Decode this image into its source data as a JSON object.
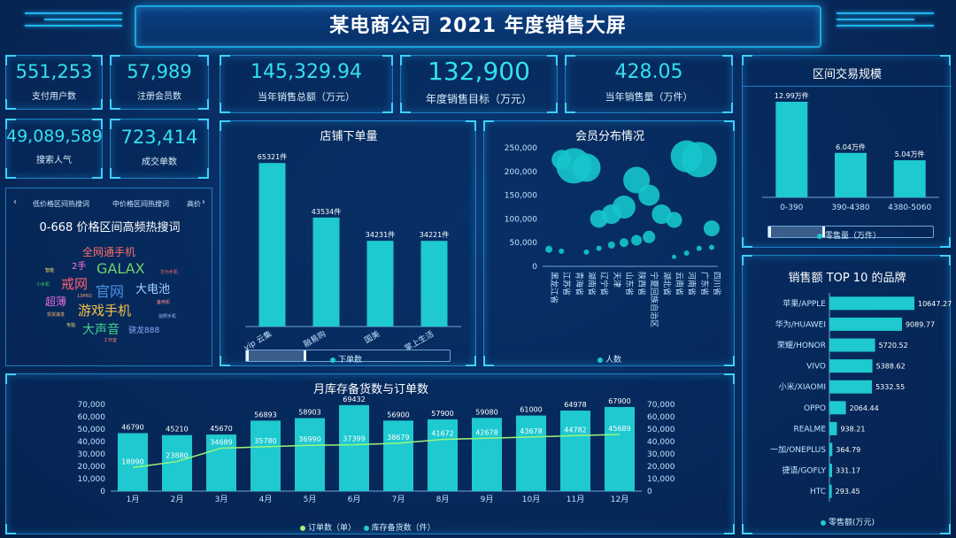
{
  "header": {
    "title": "某电商公司 2021 年度销售大屏"
  },
  "kpis": [
    {
      "value": "551,253",
      "label": "支付用户数"
    },
    {
      "value": "57,989",
      "label": "注册会员数"
    },
    {
      "value": "49,089,589",
      "label": "搜索人气"
    },
    {
      "value": "723,414",
      "label": "成交单数"
    }
  ],
  "top_kpis": [
    {
      "value": "145,329.94",
      "label": "当年销售总额（万元）"
    },
    {
      "value": "132,900",
      "label": "年度销售目标（万元）"
    },
    {
      "value": "428.05",
      "label": "当年销售量（万件）"
    }
  ],
  "keywords_panel": {
    "tabs": [
      "低价格区间热搜词",
      "中价格区间热搜词",
      "高价"
    ],
    "arrow_left": "‹",
    "arrow_right": "›",
    "heading": "0-668 价格区间高频热搜词",
    "words": [
      {
        "text": "全网通手机",
        "color": "#ff6a6a"
      },
      {
        "text": "2手",
        "color": "#ff7ad9"
      },
      {
        "text": "GALAX",
        "color": "#6fd16f"
      },
      {
        "text": "戒网",
        "color": "#ff5f6e"
      },
      {
        "text": "官网",
        "color": "#4a8fe8"
      },
      {
        "text": "大电池",
        "color": "#9fd6ff"
      },
      {
        "text": "超薄",
        "color": "#e36dd8"
      },
      {
        "text": "游戏手机",
        "color": "#f6c14a"
      },
      {
        "text": "大声音",
        "color": "#45d08c"
      },
      {
        "text": "骁龙888",
        "color": "#8fa8ff"
      },
      {
        "text": "华为手机",
        "color": "#ff6a6a"
      },
      {
        "text": "备用机",
        "color": "#ff8a8a"
      },
      {
        "text": "拍照手机",
        "color": "#9fb8ff"
      },
      {
        "text": "现货速发",
        "color": "#ffb56a"
      },
      {
        "text": "小手机",
        "color": "#4ecf6a"
      },
      {
        "text": "13PRO",
        "color": "#ff9a6a"
      },
      {
        "text": "工作室",
        "color": "#ff7a7a"
      },
      {
        "text": "智能",
        "color": "#ffe86a"
      },
      {
        "text": "专拍",
        "color": "#ffe86a"
      }
    ]
  },
  "store_orders": {
    "title": "店铺下单量",
    "legend": "下单数",
    "chart_data": {
      "type": "bar",
      "categories": [
        "vip 云集",
        "融易购",
        "国美",
        "掌上生活"
      ],
      "values": [
        65321,
        43534,
        34231,
        34221
      ],
      "value_labels": [
        "65321件",
        "43534件",
        "34231件",
        "34221件"
      ],
      "color": "#1ec9cf"
    }
  },
  "members": {
    "title": "会员分布情况",
    "legend": "人数",
    "chart_data": {
      "type": "scatter",
      "categories": [
        "黑龙江省",
        "江苏省",
        "青海省",
        "湖南省",
        "辽宁省",
        "天津",
        "山东省",
        "陕西省",
        "宁夏回族自治区",
        "湖北省",
        "云南省",
        "河南省",
        "广东省",
        "四川省"
      ],
      "y_ticks": [
        "250,000",
        "200,000",
        "150,000",
        "100,000",
        "50,000",
        "0"
      ],
      "ylim": [
        0,
        250000
      ],
      "points": [
        {
          "x": "黑龙江省",
          "y": 36000,
          "size": 8
        },
        {
          "x": "江苏省",
          "y": 225000,
          "size": 22
        },
        {
          "x": "青海省",
          "y": 212000,
          "size": 40
        },
        {
          "x": "湖南省",
          "y": 208000,
          "size": 32
        },
        {
          "x": "辽宁省",
          "y": 100000,
          "size": 20
        },
        {
          "x": "天津",
          "y": 110000,
          "size": 22
        },
        {
          "x": "山东省",
          "y": 125000,
          "size": 26
        },
        {
          "x": "陕西省",
          "y": 182000,
          "size": 30
        },
        {
          "x": "宁夏回族自治区",
          "y": 150000,
          "size": 24
        },
        {
          "x": "湖北省",
          "y": 110000,
          "size": 22
        },
        {
          "x": "云南省",
          "y": 98000,
          "size": 18
        },
        {
          "x": "河南省",
          "y": 232000,
          "size": 36
        },
        {
          "x": "广东省",
          "y": 225000,
          "size": 40
        },
        {
          "x": "四川省",
          "y": 80000,
          "size": 18
        },
        {
          "x": "江苏省",
          "y": 32000,
          "size": 6
        },
        {
          "x": "湖南省",
          "y": 30000,
          "size": 6
        },
        {
          "x": "辽宁省",
          "y": 38000,
          "size": 6
        },
        {
          "x": "天津",
          "y": 45000,
          "size": 8
        },
        {
          "x": "山东省",
          "y": 50000,
          "size": 10
        },
        {
          "x": "陕西省",
          "y": 55000,
          "size": 12
        },
        {
          "x": "宁夏回族自治区",
          "y": 62000,
          "size": 14
        },
        {
          "x": "云南省",
          "y": 20000,
          "size": 5
        },
        {
          "x": "河南省",
          "y": 28000,
          "size": 6
        },
        {
          "x": "广东省",
          "y": 38000,
          "size": 6
        },
        {
          "x": "四川省",
          "y": 40000,
          "size": 6
        }
      ]
    }
  },
  "trade_scale": {
    "title": "区间交易规模",
    "legend": "零售量（万件）",
    "chart_data": {
      "type": "bar",
      "categories": [
        "0-390",
        "390-4380",
        "4380-5060"
      ],
      "values": [
        12.99,
        6.04,
        5.04
      ],
      "value_labels": [
        "12.99万件",
        "6.04万件",
        "5.04万件"
      ]
    }
  },
  "monthly": {
    "title": "月库存备货数与订单数",
    "legend_line": "订单数（单）",
    "legend_bar": "库存备货数（件）",
    "chart_data": {
      "type": "bar",
      "categories": [
        "1月",
        "2月",
        "3月",
        "4月",
        "5月",
        "6月",
        "7月",
        "8月",
        "9月",
        "10月",
        "11月",
        "12月"
      ],
      "y_ticks_left": [
        "70,000",
        "60,000",
        "50,000",
        "40,000",
        "30,000",
        "20,000",
        "10,000",
        "0"
      ],
      "y_ticks_right": [
        "70,000",
        "60,000",
        "50,000",
        "40,000",
        "30,000",
        "20,000",
        "10,000",
        "0"
      ],
      "ylim": [
        0,
        70000
      ],
      "series": [
        {
          "name": "库存备货数（件）",
          "type": "bar",
          "values": [
            46790,
            45210,
            45670,
            56893,
            58903,
            69432,
            56900,
            57900,
            59080,
            61000,
            64978,
            67900
          ]
        },
        {
          "name": "订单数（单）",
          "type": "line",
          "values": [
            18990,
            23880,
            34689,
            35780,
            36990,
            37399,
            38679,
            41672,
            42678,
            43678,
            44782,
            45689
          ]
        }
      ]
    }
  },
  "brands": {
    "title": "销售额 TOP 10 的品牌",
    "legend": "零售额(万元)",
    "chart_data": {
      "type": "bar",
      "orientation": "horizontal",
      "categories": [
        "苹果/APPLE",
        "华为/HUAWEI",
        "荣耀/HONOR",
        "VIVO",
        "小米/XIAOMI",
        "OPPO",
        "REALME",
        "一加/ONEPLUS",
        "捷语/GOFLY",
        "HTC"
      ],
      "values": [
        10647.27,
        9089.77,
        5720.52,
        5388.62,
        5332.55,
        2064.44,
        938.21,
        364.79,
        331.17,
        293.45
      ],
      "value_labels": [
        "10647.27",
        "9089.77",
        "5720.52",
        "5388.62",
        "5332.55",
        "2064.44",
        "938.21",
        "364.79",
        "331.17",
        "293.45"
      ]
    }
  }
}
